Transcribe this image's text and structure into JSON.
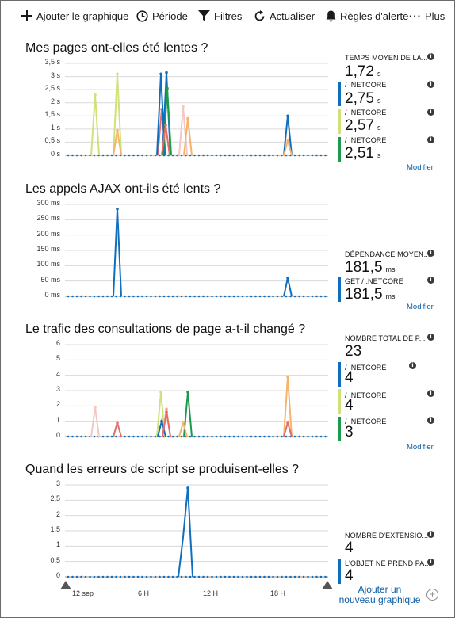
{
  "toolbar": {
    "add_chart": "Ajouter le graphique",
    "period": "Période",
    "filters": "Filtres",
    "refresh": "Actualiser",
    "alert_rules": "Règles d'alerte",
    "more": "Plus"
  },
  "sections": [
    {
      "title": "Mes pages ont-elles été lentes ?",
      "yticks": [
        "3,5 s",
        "3 s",
        "2,5 s",
        "2 s",
        "1,5 s",
        "1 s",
        "0,5 s",
        "0 s"
      ],
      "panel": {
        "summary_label": "TEMPS MOYEN DE LA...",
        "summary_value": "1,72",
        "summary_unit": "s",
        "items": [
          {
            "label": "/ .NETCORE",
            "value": "2,75",
            "unit": "s",
            "color": "#106ebe"
          },
          {
            "label": "/ .NETCORE",
            "value": "2,57",
            "unit": "s",
            "color": "#cfe27a"
          },
          {
            "label": "/ .NETCORE",
            "value": "2,51",
            "unit": "s",
            "color": "#1b9b4b"
          }
        ],
        "edit": "Modifier"
      }
    },
    {
      "title": "Les appels AJAX ont-ils été lents ?",
      "yticks": [
        "300 ms",
        "250 ms",
        "200 ms",
        "150 ms",
        "100 ms",
        "50 ms",
        "0 ms"
      ],
      "panel": {
        "summary_label": "DÉPENDANCE MOYEN...",
        "summary_value": "181,5",
        "summary_unit": "ms",
        "items": [
          {
            "label": "GET / .NETCORE",
            "value": "181,5",
            "unit": "ms",
            "color": "#106ebe"
          }
        ],
        "edit": "Modifier"
      }
    },
    {
      "title": "Le trafic des consultations de page a-t-il changé ?",
      "yticks": [
        "6",
        "5",
        "4",
        "3",
        "2",
        "1",
        "0"
      ],
      "panel": {
        "summary_label": "NOMBRE TOTAL DE P...",
        "summary_value": "23",
        "summary_unit": "",
        "items": [
          {
            "label": "/ .NETCORE",
            "value": "4",
            "unit": "",
            "color": "#106ebe"
          },
          {
            "label": "/ .NETCORE",
            "value": "4",
            "unit": "",
            "color": "#cfe27a"
          },
          {
            "label": "/ .NETCORE",
            "value": "3",
            "unit": "",
            "color": "#1b9b4b"
          }
        ],
        "edit": "Modifier"
      }
    },
    {
      "title": "Quand les erreurs de script se produisent-elles ?",
      "yticks": [
        "3",
        "2,5",
        "2",
        "1,5",
        "1",
        "0,5",
        "0"
      ],
      "panel": {
        "summary_label": "NOMBRE D'EXTENSIO...",
        "summary_value": "4",
        "summary_unit": "",
        "items": [
          {
            "label": "L'OBJET NE PREND PA...",
            "value": "4",
            "unit": "",
            "color": "#106ebe"
          }
        ],
        "edit": ""
      }
    }
  ],
  "x_axis": [
    "12 sep",
    "6 H",
    "12 H",
    "18 H"
  ],
  "add_chart": {
    "line1": "Ajouter un",
    "line2": "nouveau graphique"
  },
  "colors": {
    "blue": "#106ebe",
    "lime": "#cfe27a",
    "green": "#1b9b4b",
    "orange": "#f7b36b",
    "pink": "#f4c7c3",
    "red": "#e26b6b"
  }
}
